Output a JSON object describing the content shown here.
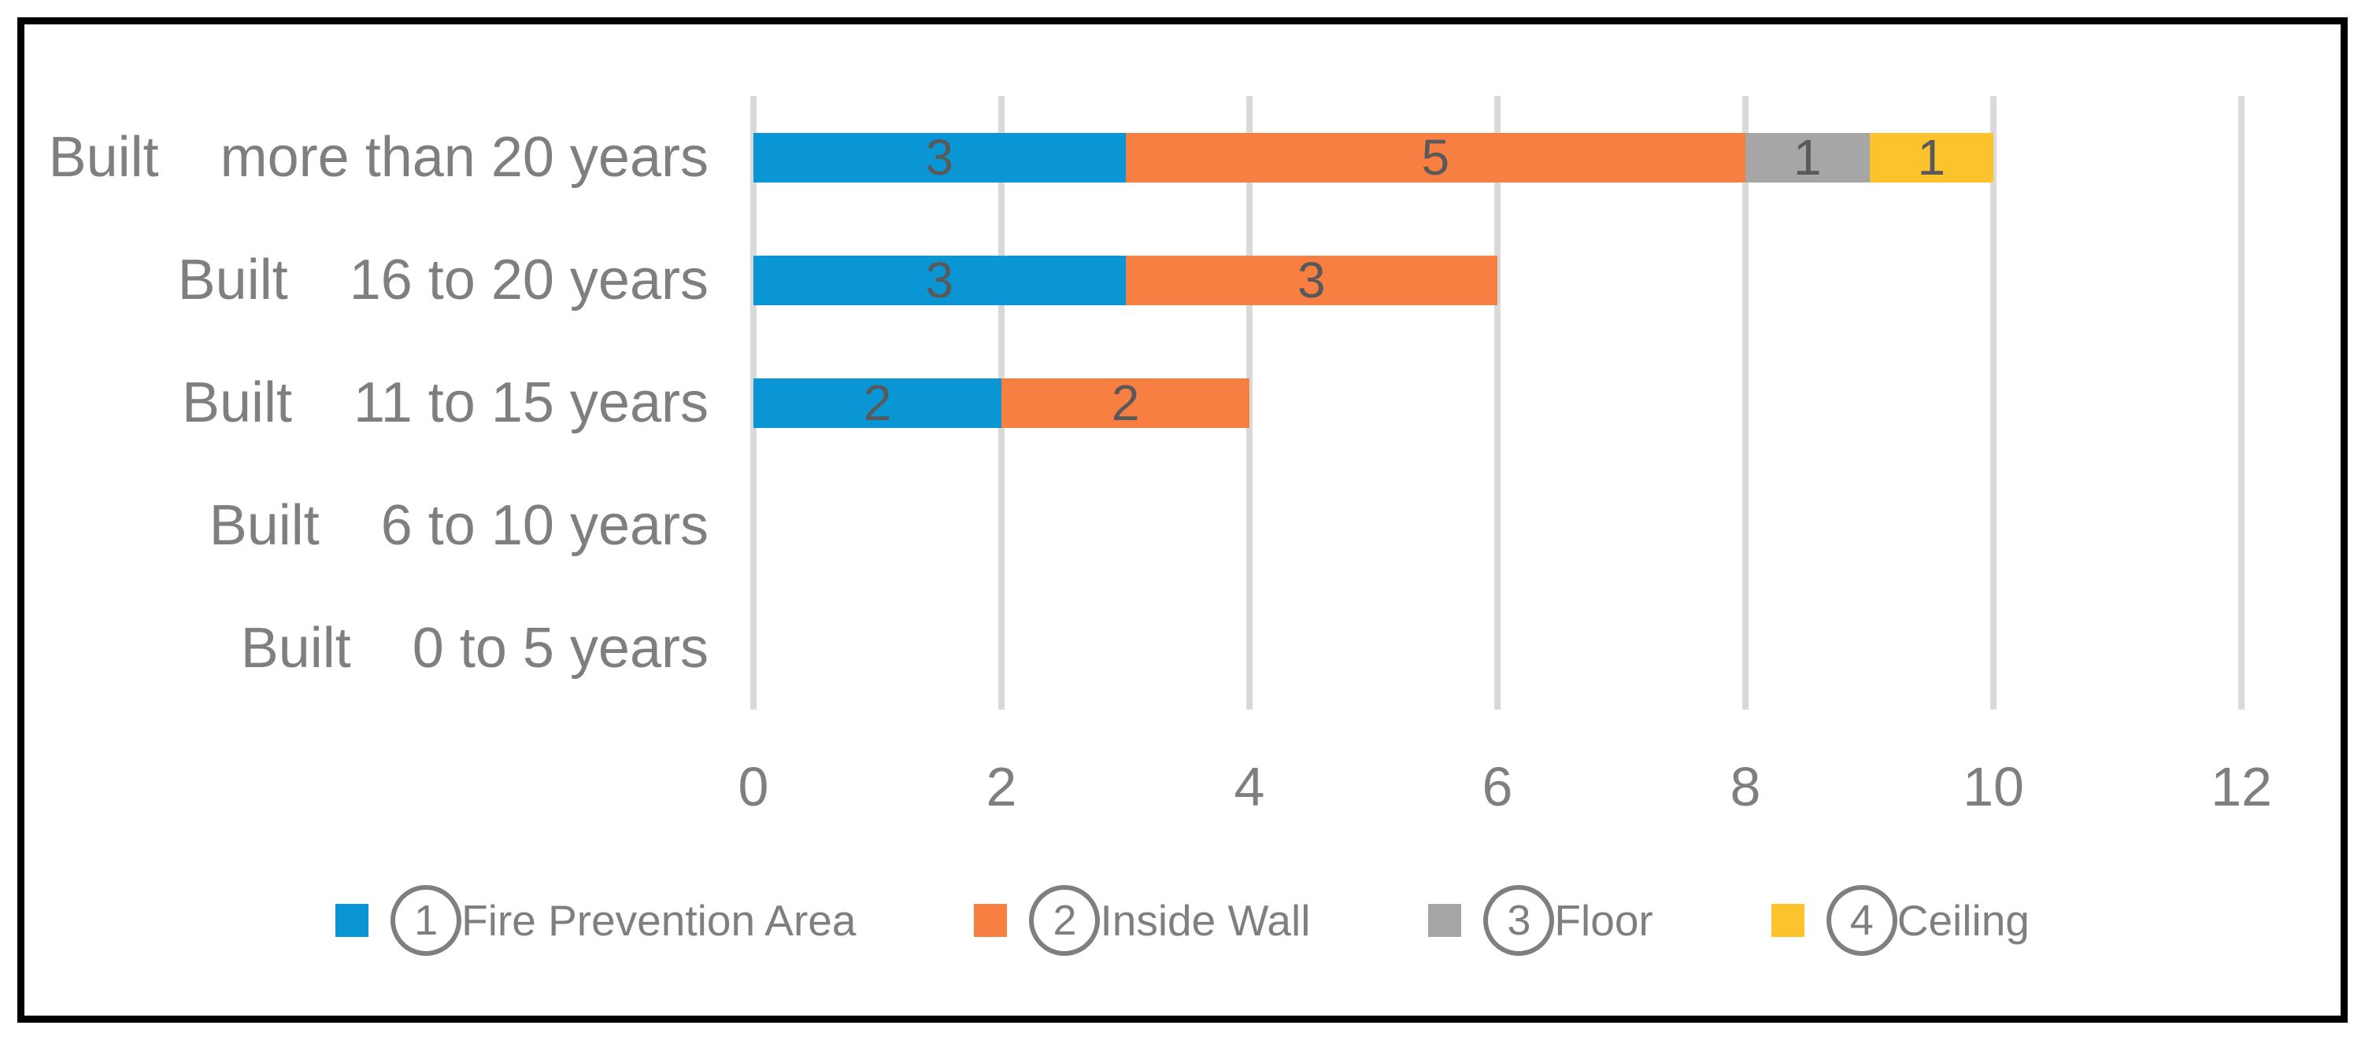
{
  "chart_data": {
    "type": "bar",
    "orientation": "horizontal",
    "stacked": true,
    "title": "",
    "xlabel": "",
    "ylabel": "",
    "xlim": [
      0,
      12
    ],
    "x_ticks": [
      0,
      2,
      4,
      6,
      8,
      10,
      12
    ],
    "grid": "vertical-on",
    "legend_position": "bottom",
    "categories": [
      {
        "prefix": "Built",
        "range": "more than 20 years"
      },
      {
        "prefix": "Built",
        "range": "16 to 20 years"
      },
      {
        "prefix": "Built",
        "range": "11 to 15 years"
      },
      {
        "prefix": "Built",
        "range": "6 to 10 years"
      },
      {
        "prefix": "Built",
        "range": "0 to 5 years"
      }
    ],
    "series": [
      {
        "legend_num": "1",
        "name": "Fire Prevention Area",
        "color": "#0A96D4",
        "values": [
          3,
          3,
          2,
          0,
          0
        ]
      },
      {
        "legend_num": "2",
        "name": "Inside Wall",
        "color": "#F87F42",
        "values": [
          5,
          3,
          2,
          0,
          0
        ]
      },
      {
        "legend_num": "3",
        "name": "Floor",
        "color": "#A6A6A6",
        "values": [
          1,
          0,
          0,
          0,
          0
        ]
      },
      {
        "legend_num": "4",
        "name": "Ceiling",
        "color": "#FDC32D",
        "values": [
          1,
          0,
          0,
          0,
          0
        ]
      }
    ],
    "colors": {
      "axis_text": "#7F7F7F",
      "category_text": "#7F7F7F",
      "data_label": "#595959",
      "gridline": "#D9D9D9",
      "legend_text": "#7F7F7F",
      "frame_border": "#000000",
      "background": "#FFFFFF"
    }
  }
}
